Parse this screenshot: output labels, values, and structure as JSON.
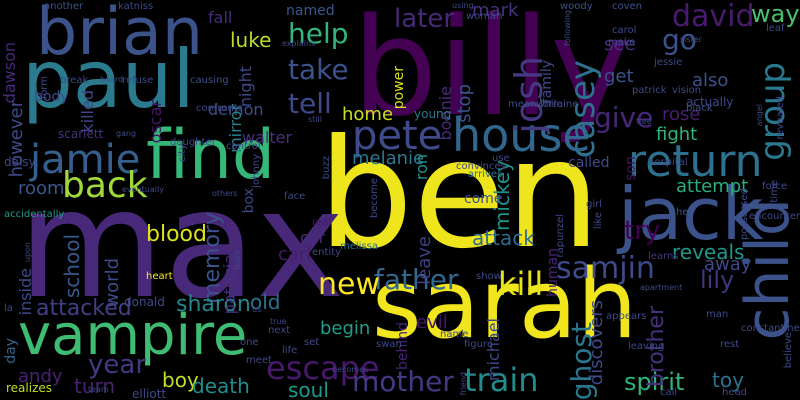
{
  "words": [
    {
      "text": "ben",
      "color": "#efe51c"
    },
    {
      "text": "max",
      "color": "#482979"
    },
    {
      "text": "billy",
      "color": "#440154"
    },
    {
      "text": "sarah",
      "color": "#f1e51d"
    },
    {
      "text": "paul",
      "color": "#2a7b8e"
    },
    {
      "text": "vampire",
      "color": "#3fbc73"
    },
    {
      "text": "find",
      "color": "#35b779"
    },
    {
      "text": "brian",
      "color": "#3b528b"
    },
    {
      "text": "house",
      "color": "#31668e"
    },
    {
      "text": "jack",
      "color": "#3b528b"
    },
    {
      "text": "child",
      "color": "#3b528b"
    },
    {
      "text": "return",
      "color": "#2c728e"
    },
    {
      "text": "jamie",
      "color": "#355f8d"
    },
    {
      "text": "pete",
      "color": "#3e4a89"
    },
    {
      "text": "back",
      "color": "#a0da39"
    },
    {
      "text": "josh",
      "color": "#453781"
    },
    {
      "text": "take",
      "color": "#3b528b"
    },
    {
      "text": "tell",
      "color": "#3e4989"
    },
    {
      "text": "group",
      "color": "#2a788e"
    },
    {
      "text": "father",
      "color": "#31668e"
    },
    {
      "text": "kill",
      "color": "#e5e419"
    },
    {
      "text": "casey",
      "color": "#2d718e"
    },
    {
      "text": "david",
      "color": "#481b6d"
    },
    {
      "text": "escape",
      "color": "#48186a"
    },
    {
      "text": "mother",
      "color": "#453781"
    },
    {
      "text": "train",
      "color": "#238a8d"
    },
    {
      "text": "samjin",
      "color": "#3e4a89"
    },
    {
      "text": "new",
      "color": "#fde725"
    },
    {
      "text": "year",
      "color": "#453781"
    },
    {
      "text": "ghost",
      "color": "#2a768e"
    },
    {
      "text": "fight",
      "color": "#2fb47c"
    },
    {
      "text": "give",
      "color": "#482677"
    },
    {
      "text": "later",
      "color": "#482979"
    },
    {
      "text": "help",
      "color": "#31b57b"
    },
    {
      "text": "luke",
      "color": "#b8de29"
    },
    {
      "text": "go",
      "color": "#3b528b"
    },
    {
      "text": "way",
      "color": "#48c16e"
    },
    {
      "text": "attack",
      "color": "#2f6c8e"
    },
    {
      "text": "try",
      "color": "#440154"
    },
    {
      "text": "spirit",
      "color": "#2fb47c"
    },
    {
      "text": "reveals",
      "color": "#1f978b"
    },
    {
      "text": "lily",
      "color": "#46337e"
    },
    {
      "text": "memory",
      "color": "#3b528b"
    },
    {
      "text": "blood",
      "color": "#dde318"
    },
    {
      "text": "attacked",
      "color": "#433e85"
    },
    {
      "text": "school",
      "color": "#38588c"
    },
    {
      "text": "old",
      "color": "#2c728e"
    },
    {
      "text": "sharon",
      "color": "#24868e"
    },
    {
      "text": "evil",
      "color": "#481769"
    },
    {
      "text": "melanie",
      "color": "#2a788e"
    },
    {
      "text": "home",
      "color": "#c8e020"
    },
    {
      "text": "room",
      "color": "#38588c"
    },
    {
      "text": "rose",
      "color": "#481f70"
    },
    {
      "text": "get",
      "color": "#39558c"
    },
    {
      "text": "also",
      "color": "#3b528b"
    },
    {
      "text": "stop",
      "color": "#3b528b"
    },
    {
      "text": "family",
      "color": "#3e4a89"
    },
    {
      "text": "mark",
      "color": "#46327e"
    },
    {
      "text": "see",
      "color": "#472d7b"
    },
    {
      "text": "attempt",
      "color": "#29af7f"
    },
    {
      "text": "away",
      "color": "#3f4889"
    },
    {
      "text": "boy",
      "color": "#c0df25"
    },
    {
      "text": "turn",
      "color": "#482173"
    },
    {
      "text": "death",
      "color": "#228d8d"
    },
    {
      "text": "soul",
      "color": "#1f9a8a"
    },
    {
      "text": "toy",
      "color": "#2c728e"
    },
    {
      "text": "brother",
      "color": "#46307e"
    },
    {
      "text": "andy",
      "color": "#482173"
    },
    {
      "text": "day",
      "color": "#31668e"
    },
    {
      "text": "world",
      "color": "#3e4a89"
    },
    {
      "text": "carl",
      "color": "#481b6d"
    },
    {
      "text": "car",
      "color": "#472c7a"
    },
    {
      "text": "leave",
      "color": "#423f85"
    },
    {
      "text": "ron",
      "color": "#1f968b"
    },
    {
      "text": "mickey",
      "color": "#21918c"
    },
    {
      "text": "human",
      "color": "#482677"
    },
    {
      "text": "michael",
      "color": "#3f4889"
    },
    {
      "text": "discovers",
      "color": "#3e4a89"
    },
    {
      "text": "begin",
      "color": "#1f9e89"
    },
    {
      "text": "behind",
      "color": "#482475"
    },
    {
      "text": "inside",
      "color": "#3e4a89"
    },
    {
      "text": "however",
      "color": "#3e4989"
    },
    {
      "text": "dawson",
      "color": "#482979"
    },
    {
      "text": "killed",
      "color": "#404688"
    },
    {
      "text": "fall",
      "color": "#472d7b"
    },
    {
      "text": "demon",
      "color": "#3d4e8a"
    },
    {
      "text": "night",
      "color": "#3e4a89"
    },
    {
      "text": "mirror",
      "color": "#27808e"
    },
    {
      "text": "oscar",
      "color": "#481467"
    },
    {
      "text": "walter",
      "color": "#46327e"
    },
    {
      "text": "box",
      "color": "#3e4989"
    },
    {
      "text": "patricia",
      "color": "#46307e"
    },
    {
      "text": "bonnie",
      "color": "#472c7a"
    },
    {
      "text": "named",
      "color": "#38588c"
    },
    {
      "text": "come",
      "color": "#3b528b"
    },
    {
      "text": "called",
      "color": "#3e4a89"
    },
    {
      "text": "son",
      "color": "#471365"
    },
    {
      "text": "body",
      "color": "#3e4989"
    },
    {
      "text": "scarlett",
      "color": "#46337e"
    },
    {
      "text": "daisy",
      "color": "#3e4989"
    },
    {
      "text": "accidentally",
      "color": "#1f9a8a"
    },
    {
      "text": "realizes",
      "color": "#bddf26"
    },
    {
      "text": "elliott",
      "color": "#3f4889"
    },
    {
      "text": "donald",
      "color": "#3e4989"
    },
    {
      "text": "heart",
      "color": "#fde725"
    },
    {
      "text": "rapunzel",
      "color": "#3e4989"
    },
    {
      "text": "melissa",
      "color": "#2c728e"
    },
    {
      "text": "entity",
      "color": "#3e4989"
    },
    {
      "text": "real",
      "color": "#481769"
    },
    {
      "text": "learns",
      "color": "#46337e"
    },
    {
      "text": "arrives",
      "color": "#2c728e"
    },
    {
      "text": "convinces",
      "color": "#3e4989"
    },
    {
      "text": "lorraine",
      "color": "#3e4989"
    },
    {
      "text": "meanwhile",
      "color": "#3e4989"
    },
    {
      "text": "young",
      "color": "#2a788e"
    },
    {
      "text": "still",
      "color": "#3e4989"
    },
    {
      "text": "power",
      "color": "#d8e219"
    },
    {
      "text": "causing",
      "color": "#3b528b"
    },
    {
      "text": "refuse",
      "color": "#3e4989"
    },
    {
      "text": "break",
      "color": "#3e4989"
    },
    {
      "text": "board",
      "color": "#3b528b"
    },
    {
      "text": "form",
      "color": "#3e4989"
    },
    {
      "text": "another",
      "color": "#3b528b"
    },
    {
      "text": "katniss",
      "color": "#3e4989"
    },
    {
      "text": "using",
      "color": "#3e4989"
    },
    {
      "text": "woman",
      "color": "#3e4989"
    },
    {
      "text": "following",
      "color": "#3e4989"
    },
    {
      "text": "woody",
      "color": "#3b528b"
    },
    {
      "text": "coven",
      "color": "#3b528b"
    },
    {
      "text": "carol",
      "color": "#3e4989"
    },
    {
      "text": "make",
      "color": "#3e4989"
    },
    {
      "text": "jessie",
      "color": "#3e4989"
    },
    {
      "text": "patrick",
      "color": "#3e4989"
    },
    {
      "text": "vision",
      "color": "#3e4989"
    },
    {
      "text": "actually",
      "color": "#3e4989"
    },
    {
      "text": "sister",
      "color": "#3e4989"
    },
    {
      "text": "black",
      "color": "#3b528b"
    },
    {
      "text": "leaf",
      "color": "#3e4989"
    },
    {
      "text": "revealed",
      "color": "#3e4989"
    },
    {
      "text": "angel",
      "color": "#3e4989"
    },
    {
      "text": "free",
      "color": "#3e4989"
    },
    {
      "text": "hell",
      "color": "#3b528b"
    },
    {
      "text": "force",
      "color": "#3e4989"
    },
    {
      "text": "possessed",
      "color": "#3e4989"
    },
    {
      "text": "time",
      "color": "#3e4989"
    },
    {
      "text": "encounter",
      "color": "#3e4989"
    },
    {
      "text": "hospital",
      "color": "#3e4989"
    },
    {
      "text": "use",
      "color": "#3e4989"
    },
    {
      "text": "girl",
      "color": "#3e4989"
    },
    {
      "text": "like",
      "color": "#3e4989"
    },
    {
      "text": "show",
      "color": "#3e4989"
    },
    {
      "text": "figure",
      "color": "#3e4989"
    },
    {
      "text": "name",
      "color": "#3e4989"
    },
    {
      "text": "swan",
      "color": "#3e4989"
    },
    {
      "text": "set",
      "color": "#3e4989"
    },
    {
      "text": "life",
      "color": "#3e4989"
    },
    {
      "text": "next",
      "color": "#3e4989"
    },
    {
      "text": "one",
      "color": "#3e4989"
    },
    {
      "text": "us",
      "color": "#3e4989"
    },
    {
      "text": "meet",
      "color": "#3e4989"
    },
    {
      "text": "becomes",
      "color": "#3e4989"
    },
    {
      "text": "friend",
      "color": "#3e4989"
    },
    {
      "text": "team",
      "color": "#3e4989"
    },
    {
      "text": "true",
      "color": "#3e4989"
    },
    {
      "text": "town",
      "color": "#3e4989"
    },
    {
      "text": "la",
      "color": "#3e4989"
    },
    {
      "text": "upon",
      "color": "#3e4989"
    },
    {
      "text": "gang",
      "color": "#3e4989"
    },
    {
      "text": "daughter",
      "color": "#3e4989"
    },
    {
      "text": "city",
      "color": "#3e4989"
    },
    {
      "text": "control",
      "color": "#3e4989"
    },
    {
      "text": "johnny",
      "color": "#3e4989"
    },
    {
      "text": "buzz",
      "color": "#3e4989"
    },
    {
      "text": "face",
      "color": "#3e4989"
    },
    {
      "text": "eventually",
      "color": "#3e4989"
    },
    {
      "text": "others",
      "color": "#3e4989"
    },
    {
      "text": "confronts",
      "color": "#3e4989"
    },
    {
      "text": "explains",
      "color": "#3e4989"
    },
    {
      "text": "become",
      "color": "#3e4989"
    },
    {
      "text": "appears",
      "color": "#3e4989"
    },
    {
      "text": "man",
      "color": "#3e4989"
    },
    {
      "text": "leaving",
      "color": "#3e4989"
    },
    {
      "text": "rest",
      "color": "#3e4989"
    },
    {
      "text": "call",
      "color": "#3e4989"
    },
    {
      "text": "head",
      "color": "#3e4989"
    },
    {
      "text": "believe",
      "color": "#3e4989"
    },
    {
      "text": "constantine",
      "color": "#3e4989"
    },
    {
      "text": "apartment",
      "color": "#3e4989"
    },
    {
      "text": "discover",
      "color": "#3e4989"
    },
    {
      "text": "sibling",
      "color": "#3e4989"
    },
    {
      "text": "arrive",
      "color": "#3e4989"
    }
  ]
}
